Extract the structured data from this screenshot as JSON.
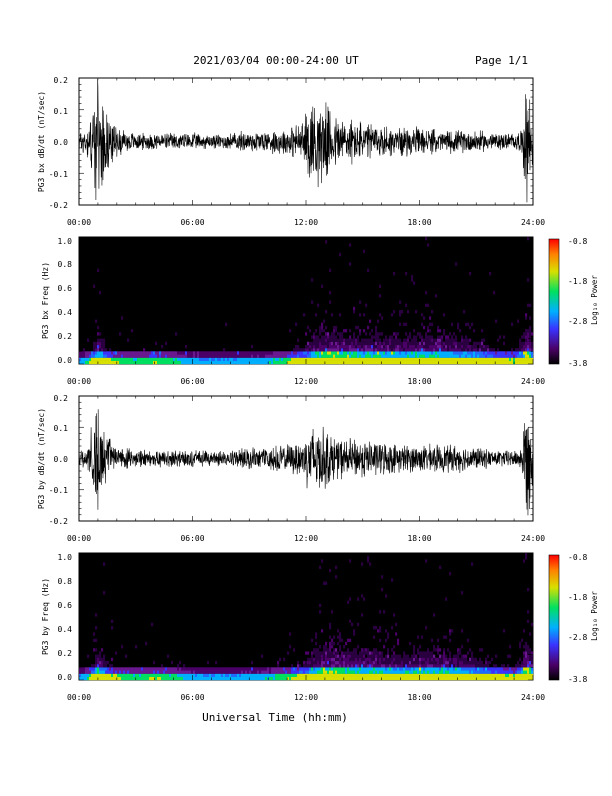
{
  "header": {
    "title": "2021/03/04  00:00-24:00 UT",
    "page": "Page 1/1"
  },
  "xaxis": {
    "label": "Universal Time (hh:mm)",
    "ticks": [
      "00:00",
      "06:00",
      "12:00",
      "18:00",
      "24:00"
    ]
  },
  "chart_data": [
    {
      "type": "line",
      "ylabel": "PG3 bx dB/dt (nT/sec)",
      "xlim": [
        0,
        24
      ],
      "ylim": [
        -0.2,
        0.2
      ],
      "yticks": [
        "0.2",
        "0.1",
        "0.0",
        "-0.1",
        "-0.2"
      ],
      "xticks": [
        "00:00",
        "06:00",
        "12:00",
        "18:00",
        "24:00"
      ],
      "envelope_hours": [
        0,
        0.5,
        0.9,
        1.0,
        1.2,
        1.5,
        2,
        3,
        4,
        5,
        6,
        7,
        8,
        9,
        10,
        11,
        11.8,
        12.3,
        12.8,
        13.5,
        14,
        15,
        16,
        17,
        18,
        19,
        20,
        21,
        22,
        22.5,
        23,
        23.4,
        23.6,
        23.8,
        24
      ],
      "envelope_amplitude": [
        0.04,
        0.06,
        0.2,
        0.2,
        0.15,
        0.1,
        0.05,
        0.03,
        0.03,
        0.03,
        0.03,
        0.025,
        0.03,
        0.04,
        0.04,
        0.05,
        0.07,
        0.16,
        0.15,
        0.1,
        0.09,
        0.07,
        0.06,
        0.05,
        0.05,
        0.04,
        0.04,
        0.04,
        0.03,
        0.03,
        0.03,
        0.04,
        0.2,
        0.2,
        0.08
      ]
    },
    {
      "type": "heatmap",
      "ylabel": "PG3 bx Freq (Hz)",
      "xlim": [
        0,
        24
      ],
      "ylim": [
        0,
        1.0
      ],
      "yticks": [
        "1.0",
        "0.8",
        "0.6",
        "0.4",
        "0.2",
        "0.0"
      ],
      "xticks": [
        "00:00",
        "06:00",
        "12:00",
        "18:00",
        "24:00"
      ],
      "colorbar": {
        "label": "Log₁₀ Power",
        "ticks": [
          "-0.8",
          "-1.8",
          "-2.8",
          "-3.8"
        ],
        "range": [
          -3.8,
          -0.8
        ]
      }
    },
    {
      "type": "line",
      "ylabel": "PG3 by dB/dt (nT/sec)",
      "xlim": [
        0,
        24
      ],
      "ylim": [
        -0.2,
        0.2
      ],
      "yticks": [
        "0.2",
        "0.1",
        "0.0",
        "-0.1",
        "-0.2"
      ],
      "xticks": [
        "00:00",
        "06:00",
        "12:00",
        "18:00",
        "24:00"
      ],
      "envelope_hours": [
        0,
        0.5,
        0.9,
        1.0,
        1.2,
        1.5,
        2,
        3,
        4,
        5,
        6,
        7,
        8,
        9,
        10,
        11,
        11.8,
        12.3,
        12.8,
        13.5,
        14,
        15,
        16,
        17,
        18,
        19,
        20,
        21,
        22,
        22.5,
        23,
        23.4,
        23.6,
        23.8,
        24
      ],
      "envelope_amplitude": [
        0.03,
        0.05,
        0.2,
        0.2,
        0.14,
        0.08,
        0.04,
        0.03,
        0.03,
        0.03,
        0.03,
        0.025,
        0.03,
        0.04,
        0.04,
        0.05,
        0.07,
        0.13,
        0.12,
        0.08,
        0.07,
        0.07,
        0.06,
        0.05,
        0.05,
        0.05,
        0.05,
        0.04,
        0.03,
        0.03,
        0.03,
        0.04,
        0.2,
        0.2,
        0.08
      ]
    },
    {
      "type": "heatmap",
      "ylabel": "PG3 by Freq (Hz)",
      "xlim": [
        0,
        24
      ],
      "ylim": [
        0,
        1.0
      ],
      "yticks": [
        "1.0",
        "0.8",
        "0.6",
        "0.4",
        "0.2",
        "0.0"
      ],
      "xticks": [
        "00:00",
        "06:00",
        "12:00",
        "18:00",
        "24:00"
      ],
      "colorbar": {
        "label": "Log₁₀ Power",
        "ticks": [
          "-0.8",
          "-1.8",
          "-2.8",
          "-3.8"
        ],
        "range": [
          -3.8,
          -0.8
        ]
      }
    }
  ],
  "colors": {
    "background": "#ffffff",
    "trace": "#000000",
    "spectrogram_bg": "#000000",
    "colorbar": [
      "#000000",
      "#4a0066",
      "#3a33ff",
      "#00b0ff",
      "#00e060",
      "#d8e000",
      "#ff8000",
      "#ff0000"
    ]
  }
}
